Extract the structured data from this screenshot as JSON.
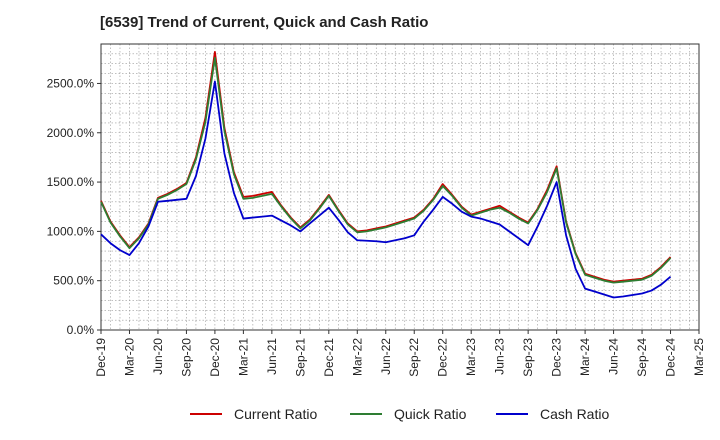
{
  "chart_data": {
    "type": "line",
    "title": "[6539]  Trend of Current, Quick and Cash Ratio",
    "xlabel": "",
    "ylabel": "",
    "ylim": [
      0,
      2900
    ],
    "y_ticks": [
      0,
      500,
      1000,
      1500,
      2000,
      2500
    ],
    "y_tick_labels": [
      "0.0%",
      "500.0%",
      "1000.0%",
      "1500.0%",
      "2000.0%",
      "2500.0%"
    ],
    "x_tick_labels": [
      "Dec-19",
      "Mar-20",
      "Jun-20",
      "Sep-20",
      "Dec-20",
      "Mar-21",
      "Jun-21",
      "Sep-21",
      "Dec-21",
      "Mar-22",
      "Jun-22",
      "Sep-22",
      "Dec-22",
      "Mar-23",
      "Jun-23",
      "Sep-23",
      "Dec-23",
      "Mar-24",
      "Jun-24",
      "Sep-24",
      "Dec-24",
      "Mar-25"
    ],
    "x_months": [
      "2019-12",
      "2020-01",
      "2020-02",
      "2020-03",
      "2020-04",
      "2020-05",
      "2020-06",
      "2020-07",
      "2020-08",
      "2020-09",
      "2020-10",
      "2020-11",
      "2020-12",
      "2021-01",
      "2021-02",
      "2021-03",
      "2021-04",
      "2021-05",
      "2021-06",
      "2021-07",
      "2021-08",
      "2021-09",
      "2021-10",
      "2021-11",
      "2021-12",
      "2022-01",
      "2022-02",
      "2022-03",
      "2022-04",
      "2022-05",
      "2022-06",
      "2022-07",
      "2022-08",
      "2022-09",
      "2022-10",
      "2022-11",
      "2022-12",
      "2023-01",
      "2023-02",
      "2023-03",
      "2023-04",
      "2023-05",
      "2023-06",
      "2023-07",
      "2023-08",
      "2023-09",
      "2023-10",
      "2023-11",
      "2023-12",
      "2024-01",
      "2024-02",
      "2024-03",
      "2024-04",
      "2024-05",
      "2024-06",
      "2024-07",
      "2024-08",
      "2024-09",
      "2024-10",
      "2024-11",
      "2024-12"
    ],
    "total_months": 63,
    "grid": true,
    "legend_position": "bottom",
    "series": [
      {
        "name": "Current Ratio",
        "color": "#cc0000",
        "values": [
          1310,
          1100,
          960,
          840,
          940,
          1080,
          1340,
          1380,
          1430,
          1490,
          1750,
          2150,
          2820,
          2050,
          1600,
          1350,
          1360,
          1380,
          1400,
          1260,
          1140,
          1040,
          1120,
          1240,
          1370,
          1220,
          1080,
          1000,
          1010,
          1030,
          1050,
          1080,
          1110,
          1140,
          1220,
          1330,
          1480,
          1370,
          1250,
          1170,
          1200,
          1230,
          1260,
          1200,
          1140,
          1090,
          1230,
          1420,
          1660,
          1100,
          780,
          570,
          540,
          510,
          490,
          500,
          510,
          520,
          560,
          640,
          740
        ]
      },
      {
        "name": "Quick Ratio",
        "color": "#2e7d32",
        "values": [
          1300,
          1090,
          950,
          830,
          930,
          1070,
          1330,
          1370,
          1420,
          1480,
          1730,
          2110,
          2760,
          2020,
          1580,
          1330,
          1340,
          1360,
          1380,
          1250,
          1130,
          1030,
          1110,
          1230,
          1360,
          1210,
          1070,
          990,
          1000,
          1020,
          1040,
          1070,
          1100,
          1130,
          1210,
          1320,
          1460,
          1360,
          1240,
          1160,
          1190,
          1220,
          1240,
          1190,
          1130,
          1080,
          1220,
          1400,
          1640,
          1090,
          770,
          560,
          530,
          500,
          480,
          490,
          500,
          510,
          550,
          630,
          730
        ]
      },
      {
        "name": "Cash Ratio",
        "color": "#0000cc",
        "values": [
          970,
          880,
          810,
          760,
          880,
          1050,
          1300,
          1310,
          1320,
          1330,
          1560,
          1940,
          2520,
          1790,
          1390,
          1130,
          1140,
          1150,
          1160,
          1110,
          1060,
          1000,
          1080,
          1160,
          1240,
          1120,
          990,
          910,
          905,
          900,
          890,
          910,
          930,
          960,
          1100,
          1220,
          1350,
          1280,
          1200,
          1150,
          1130,
          1100,
          1070,
          1000,
          930,
          860,
          1050,
          1260,
          1500,
          960,
          620,
          420,
          390,
          360,
          330,
          340,
          355,
          370,
          400,
          460,
          540
        ]
      }
    ]
  }
}
